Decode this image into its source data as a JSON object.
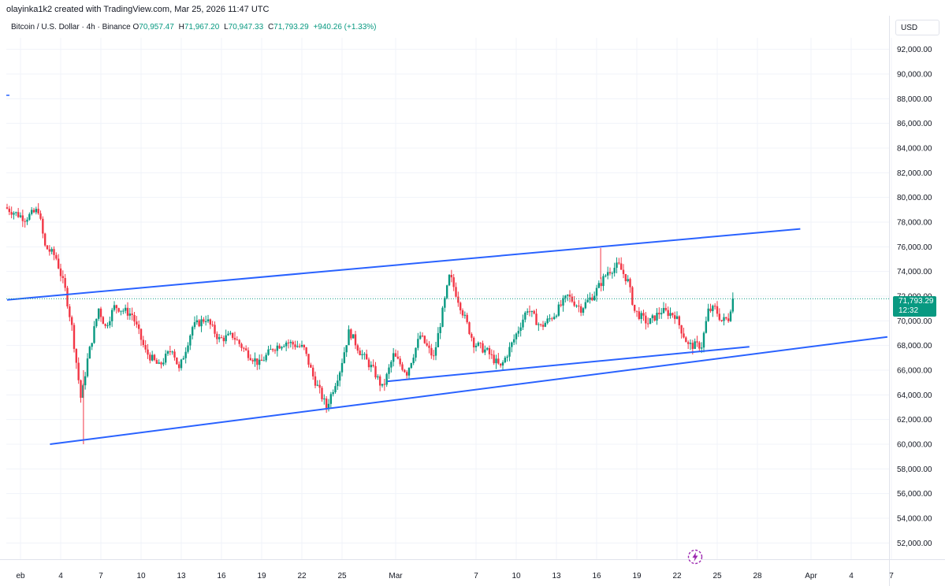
{
  "credit": "olayinka1k2 created with TradingView.com, Mar 25, 2026 11:47 UTC",
  "legend": {
    "symbol": "Bitcoin / U.S. Dollar · 4h · Binance",
    "o_label": "O",
    "o": "70,957.47",
    "h_label": "H",
    "h": "71,967.20",
    "l_label": "L",
    "l": "70,947.33",
    "c_label": "C",
    "c": "71,793.29",
    "change": "+940.26 (+1.33%)"
  },
  "currency": "USD",
  "last_price": {
    "value": "71,793.29",
    "countdown": "12:32"
  },
  "colors": {
    "up": "#089981",
    "down": "#f23645",
    "trendline": "#2962ff",
    "last_price_line": "#089981"
  },
  "chart_data": {
    "type": "candlestick",
    "title": "Bitcoin / U.S. Dollar · 4h · Binance",
    "interval": "4h",
    "ylim": [
      51000,
      94000
    ],
    "y_ticks": [
      "52,000.00",
      "54,000.00",
      "56,000.00",
      "58,000.00",
      "60,000.00",
      "62,000.00",
      "64,000.00",
      "66,000.00",
      "68,000.00",
      "70,000.00",
      "72,000.00",
      "74,000.00",
      "76,000.00",
      "78,000.00",
      "80,000.00",
      "82,000.00",
      "84,000.00",
      "86,000.00",
      "88,000.00",
      "90,000.00",
      "92,000.00"
    ],
    "y_tick_values": [
      52000,
      54000,
      56000,
      58000,
      60000,
      62000,
      64000,
      66000,
      68000,
      70000,
      72000,
      74000,
      76000,
      78000,
      80000,
      82000,
      84000,
      86000,
      88000,
      90000,
      92000
    ],
    "x_ticks": [
      "eb",
      "4",
      "7",
      "10",
      "13",
      "16",
      "19",
      "22",
      "25",
      "Mar",
      "7",
      "10",
      "13",
      "16",
      "19",
      "22",
      "25",
      "28",
      "Apr",
      "4",
      "7"
    ],
    "x_tick_days": [
      1,
      4,
      7,
      10,
      13,
      16,
      19,
      22,
      25,
      29,
      35,
      38,
      41,
      44,
      47,
      50,
      53,
      56,
      60,
      63,
      66
    ],
    "anchors": [
      {
        "day": 0.0,
        "price": 79200
      },
      {
        "day": 1.5,
        "price": 78300
      },
      {
        "day": 2.5,
        "price": 79000
      },
      {
        "day": 3.0,
        "price": 76000
      },
      {
        "day": 3.8,
        "price": 75200
      },
      {
        "day": 4.5,
        "price": 72500
      },
      {
        "day": 5.0,
        "price": 69500
      },
      {
        "day": 5.7,
        "price": 63500
      },
      {
        "day": 6.1,
        "price": 66500
      },
      {
        "day": 7.0,
        "price": 71000
      },
      {
        "day": 7.5,
        "price": 69500
      },
      {
        "day": 8.2,
        "price": 71200
      },
      {
        "day": 9.5,
        "price": 70500
      },
      {
        "day": 10.5,
        "price": 67500
      },
      {
        "day": 11.5,
        "price": 66300
      },
      {
        "day": 12.5,
        "price": 67800
      },
      {
        "day": 13.0,
        "price": 66000
      },
      {
        "day": 14.0,
        "price": 69500
      },
      {
        "day": 15.0,
        "price": 70200
      },
      {
        "day": 16.0,
        "price": 68500
      },
      {
        "day": 17.0,
        "price": 68800
      },
      {
        "day": 18.0,
        "price": 67500
      },
      {
        "day": 19.0,
        "price": 66500
      },
      {
        "day": 20.0,
        "price": 67800
      },
      {
        "day": 21.0,
        "price": 68300
      },
      {
        "day": 22.3,
        "price": 67800
      },
      {
        "day": 23.0,
        "price": 65500
      },
      {
        "day": 24.0,
        "price": 63000
      },
      {
        "day": 25.0,
        "price": 66000
      },
      {
        "day": 25.7,
        "price": 69200
      },
      {
        "day": 26.5,
        "price": 67500
      },
      {
        "day": 27.5,
        "price": 66000
      },
      {
        "day": 28.2,
        "price": 64500
      },
      {
        "day": 29.0,
        "price": 67200
      },
      {
        "day": 30.0,
        "price": 65800
      },
      {
        "day": 31.0,
        "price": 68800
      },
      {
        "day": 32.0,
        "price": 67000
      },
      {
        "day": 33.2,
        "price": 73700
      },
      {
        "day": 34.0,
        "price": 71200
      },
      {
        "day": 35.0,
        "price": 68200
      },
      {
        "day": 36.0,
        "price": 67500
      },
      {
        "day": 37.0,
        "price": 66200
      },
      {
        "day": 38.0,
        "price": 68500
      },
      {
        "day": 39.0,
        "price": 71000
      },
      {
        "day": 40.0,
        "price": 69500
      },
      {
        "day": 41.0,
        "price": 70500
      },
      {
        "day": 42.0,
        "price": 72000
      },
      {
        "day": 43.0,
        "price": 71000
      },
      {
        "day": 44.0,
        "price": 72200
      },
      {
        "day": 45.0,
        "price": 74000
      },
      {
        "day": 45.8,
        "price": 74500
      },
      {
        "day": 46.5,
        "price": 73200
      },
      {
        "day": 47.0,
        "price": 70800
      },
      {
        "day": 48.0,
        "price": 69800
      },
      {
        "day": 49.0,
        "price": 70800
      },
      {
        "day": 50.0,
        "price": 70500
      },
      {
        "day": 51.0,
        "price": 68000
      },
      {
        "day": 52.0,
        "price": 68000
      },
      {
        "day": 52.5,
        "price": 70800
      },
      {
        "day": 53.0,
        "price": 71000
      },
      {
        "day": 53.5,
        "price": 70000
      },
      {
        "day": 54.0,
        "price": 70200
      },
      {
        "day": 54.3,
        "price": 71800
      }
    ],
    "trendlines": [
      {
        "x1": 0.0,
        "y1": 71700,
        "x2": 59.2,
        "y2": 77450
      },
      {
        "x1": 3.2,
        "y1": 60000,
        "x2": 65.7,
        "y2": 68700
      },
      {
        "x1": 28.4,
        "y1": 65100,
        "x2": 55.4,
        "y2": 67900
      }
    ],
    "last_price": 71793.29
  }
}
